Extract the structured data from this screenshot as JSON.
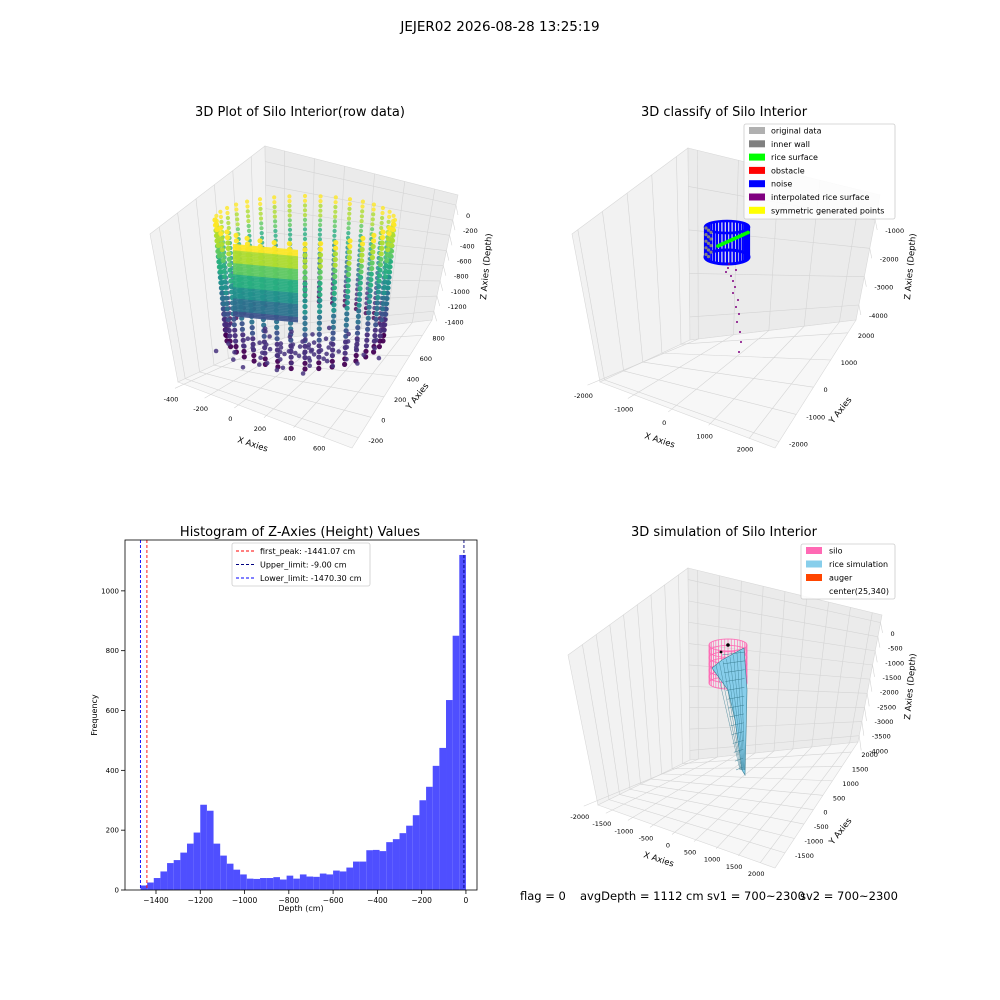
{
  "figure": {
    "suptitle": "JEJER02 2026-08-28 13:25:19",
    "status": {
      "flag": "flag = 0",
      "avg": "avgDepth = 1112 cm",
      "sv1": "sv1 = 700~2300",
      "sv2": "sv2 = 700~2300"
    }
  },
  "colors": {
    "hist_bar": "#4f4fff",
    "first_peak": "#ff0000",
    "upper_limit": "#000080",
    "lower_limit": "#0000ff",
    "noise": "#0000ff",
    "rice_surface": "#00ff00",
    "inner_wall": "#808080",
    "interp": "#800080",
    "silo": "#ff69b4",
    "rice_sim": "#87ceeb",
    "auger": "#ff4500"
  },
  "chart_data": [
    {
      "type": "scatter",
      "projection": "3d",
      "title": "3D Plot of Silo Interior(row data)",
      "xlabel": "X Axies",
      "ylabel": "Y Axies",
      "zlabel": "Z Axies (Depth)",
      "x_ticks": [
        "-400",
        "-200",
        "0",
        "200",
        "400",
        "600"
      ],
      "y_ticks": [
        "-200",
        "0",
        "200",
        "400",
        "600",
        "800"
      ],
      "z_ticks": [
        "0",
        "-200",
        "-400",
        "-600",
        "-800",
        "-1000",
        "-1200",
        "-1400"
      ],
      "xlim": [
        -450,
        650
      ],
      "ylim": [
        -250,
        900
      ],
      "zlim": [
        -1500,
        0
      ],
      "colormap": "viridis (by depth)"
    },
    {
      "type": "scatter",
      "projection": "3d",
      "title": "3D classify of Silo Interior",
      "xlabel": "X Axies",
      "ylabel": "Y Axies",
      "zlabel": "Z Axies (Depth)",
      "x_ticks": [
        "-2000",
        "-1000",
        "0",
        "1000",
        "2000"
      ],
      "y_ticks": [
        "-2000",
        "-1000",
        "0",
        "1000",
        "2000"
      ],
      "z_ticks": [
        "-1000",
        "-2000",
        "-3000",
        "-4000"
      ],
      "legend": [
        {
          "label": "original data",
          "color": "#b0b0b0"
        },
        {
          "label": "inner wall",
          "color": "#808080"
        },
        {
          "label": "rice surface",
          "color": "#00ff00"
        },
        {
          "label": "obstacle",
          "color": "#ff0000"
        },
        {
          "label": "noise",
          "color": "#0000ff"
        },
        {
          "label": "interpolated rice surface",
          "color": "#800080"
        },
        {
          "label": "symmetric generated points",
          "color": "#ffff00"
        }
      ],
      "legend_loc": "upper right"
    },
    {
      "type": "bar",
      "title": "Histogram of Z-Axies (Height) Values",
      "xlabel": "Depth (cm)",
      "ylabel": "Frequency",
      "xlim": [
        -1540,
        50
      ],
      "ylim": [
        0,
        1170
      ],
      "x_ticks": [
        -1400,
        -1200,
        -1000,
        -800,
        -600,
        -400,
        -200,
        0
      ],
      "y_ticks": [
        0,
        200,
        400,
        600,
        800,
        1000
      ],
      "bin_width": 30,
      "bins": [
        [
          -1470,
          15
        ],
        [
          -1440,
          25
        ],
        [
          -1410,
          40
        ],
        [
          -1380,
          62
        ],
        [
          -1350,
          90
        ],
        [
          -1320,
          100
        ],
        [
          -1290,
          125
        ],
        [
          -1260,
          155
        ],
        [
          -1230,
          192
        ],
        [
          -1200,
          285
        ],
        [
          -1170,
          265
        ],
        [
          -1140,
          155
        ],
        [
          -1110,
          115
        ],
        [
          -1080,
          88
        ],
        [
          -1050,
          68
        ],
        [
          -1020,
          52
        ],
        [
          -990,
          38
        ],
        [
          -960,
          37
        ],
        [
          -930,
          40
        ],
        [
          -900,
          40
        ],
        [
          -870,
          43
        ],
        [
          -840,
          35
        ],
        [
          -810,
          48
        ],
        [
          -780,
          38
        ],
        [
          -750,
          52
        ],
        [
          -720,
          45
        ],
        [
          -690,
          44
        ],
        [
          -660,
          55
        ],
        [
          -630,
          52
        ],
        [
          -600,
          65
        ],
        [
          -570,
          62
        ],
        [
          -540,
          75
        ],
        [
          -510,
          95
        ],
        [
          -480,
          95
        ],
        [
          -450,
          133
        ],
        [
          -420,
          134
        ],
        [
          -390,
          130
        ],
        [
          -360,
          160
        ],
        [
          -330,
          170
        ],
        [
          -300,
          190
        ],
        [
          -270,
          215
        ],
        [
          -240,
          250
        ],
        [
          -210,
          300
        ],
        [
          -180,
          345
        ],
        [
          -150,
          415
        ],
        [
          -120,
          475
        ],
        [
          -90,
          635
        ],
        [
          -60,
          850
        ],
        [
          -30,
          1120
        ]
      ],
      "vlines": [
        {
          "label": "first_peak: -1441.07 cm",
          "x": -1441.07,
          "color": "#ff0000"
        },
        {
          "label": "Upper_limit: -9.00 cm",
          "x": -9.0,
          "color": "#000080"
        },
        {
          "label": "Lower_limit: -1470.30 cm",
          "x": -1470.3,
          "color": "#0000ff"
        }
      ],
      "legend_loc": "upper center"
    },
    {
      "type": "surface",
      "projection": "3d",
      "title": "3D simulation of Silo Interior",
      "xlabel": "X Axies",
      "ylabel": "Y Axies",
      "zlabel": "Z Axies (Depth)",
      "x_ticks": [
        "-2000",
        "-1500",
        "-1000",
        "-500",
        "0",
        "500",
        "1000",
        "1500",
        "2000"
      ],
      "y_ticks": [
        "-1500",
        "-1000",
        "-500",
        "0",
        "500",
        "1000",
        "1500",
        "2000"
      ],
      "z_ticks": [
        "0",
        "-500",
        "-1000",
        "-1500",
        "-2000",
        "-2500",
        "-3000",
        "-3500",
        "-4000"
      ],
      "legend": [
        {
          "label": "silo",
          "color": "#ff69b4"
        },
        {
          "label": "rice simulation",
          "color": "#87ceeb"
        },
        {
          "label": "auger",
          "color": "#ff4500"
        },
        {
          "label": "center(25,340)",
          "color": "none"
        }
      ],
      "legend_loc": "upper right"
    }
  ]
}
